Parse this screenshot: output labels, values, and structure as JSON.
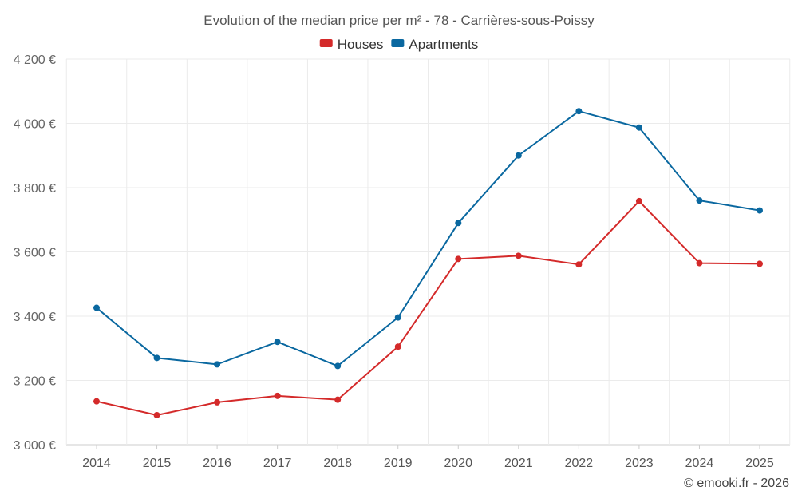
{
  "chart_data": {
    "type": "line",
    "title": "Evolution of the median price per m² - 78 - Carrières-sous-Poissy",
    "categories": [
      "2014",
      "2015",
      "2016",
      "2017",
      "2018",
      "2019",
      "2020",
      "2021",
      "2022",
      "2023",
      "2024",
      "2025"
    ],
    "series": [
      {
        "name": "Houses",
        "color": "#d42a2a",
        "values": [
          3135,
          3092,
          3132,
          3152,
          3140,
          3305,
          3578,
          3588,
          3561,
          3758,
          3565,
          3563
        ]
      },
      {
        "name": "Apartments",
        "color": "#0a68a0",
        "values": [
          3426,
          3270,
          3250,
          3320,
          3245,
          3396,
          3690,
          3900,
          4038,
          3987,
          3760,
          3729
        ]
      }
    ],
    "ylim": [
      3000,
      4200
    ],
    "yticks": [
      3000,
      3200,
      3400,
      3600,
      3800,
      4000,
      4200
    ],
    "ytick_labels": [
      "3 000 €",
      "3 200 €",
      "3 400 €",
      "3 600 €",
      "3 800 €",
      "4 000 €",
      "4 200 €"
    ],
    "grid": true,
    "legend_position": "top-center",
    "xlabel": "",
    "ylabel": ""
  },
  "credit": "© emooki.fr - 2026"
}
